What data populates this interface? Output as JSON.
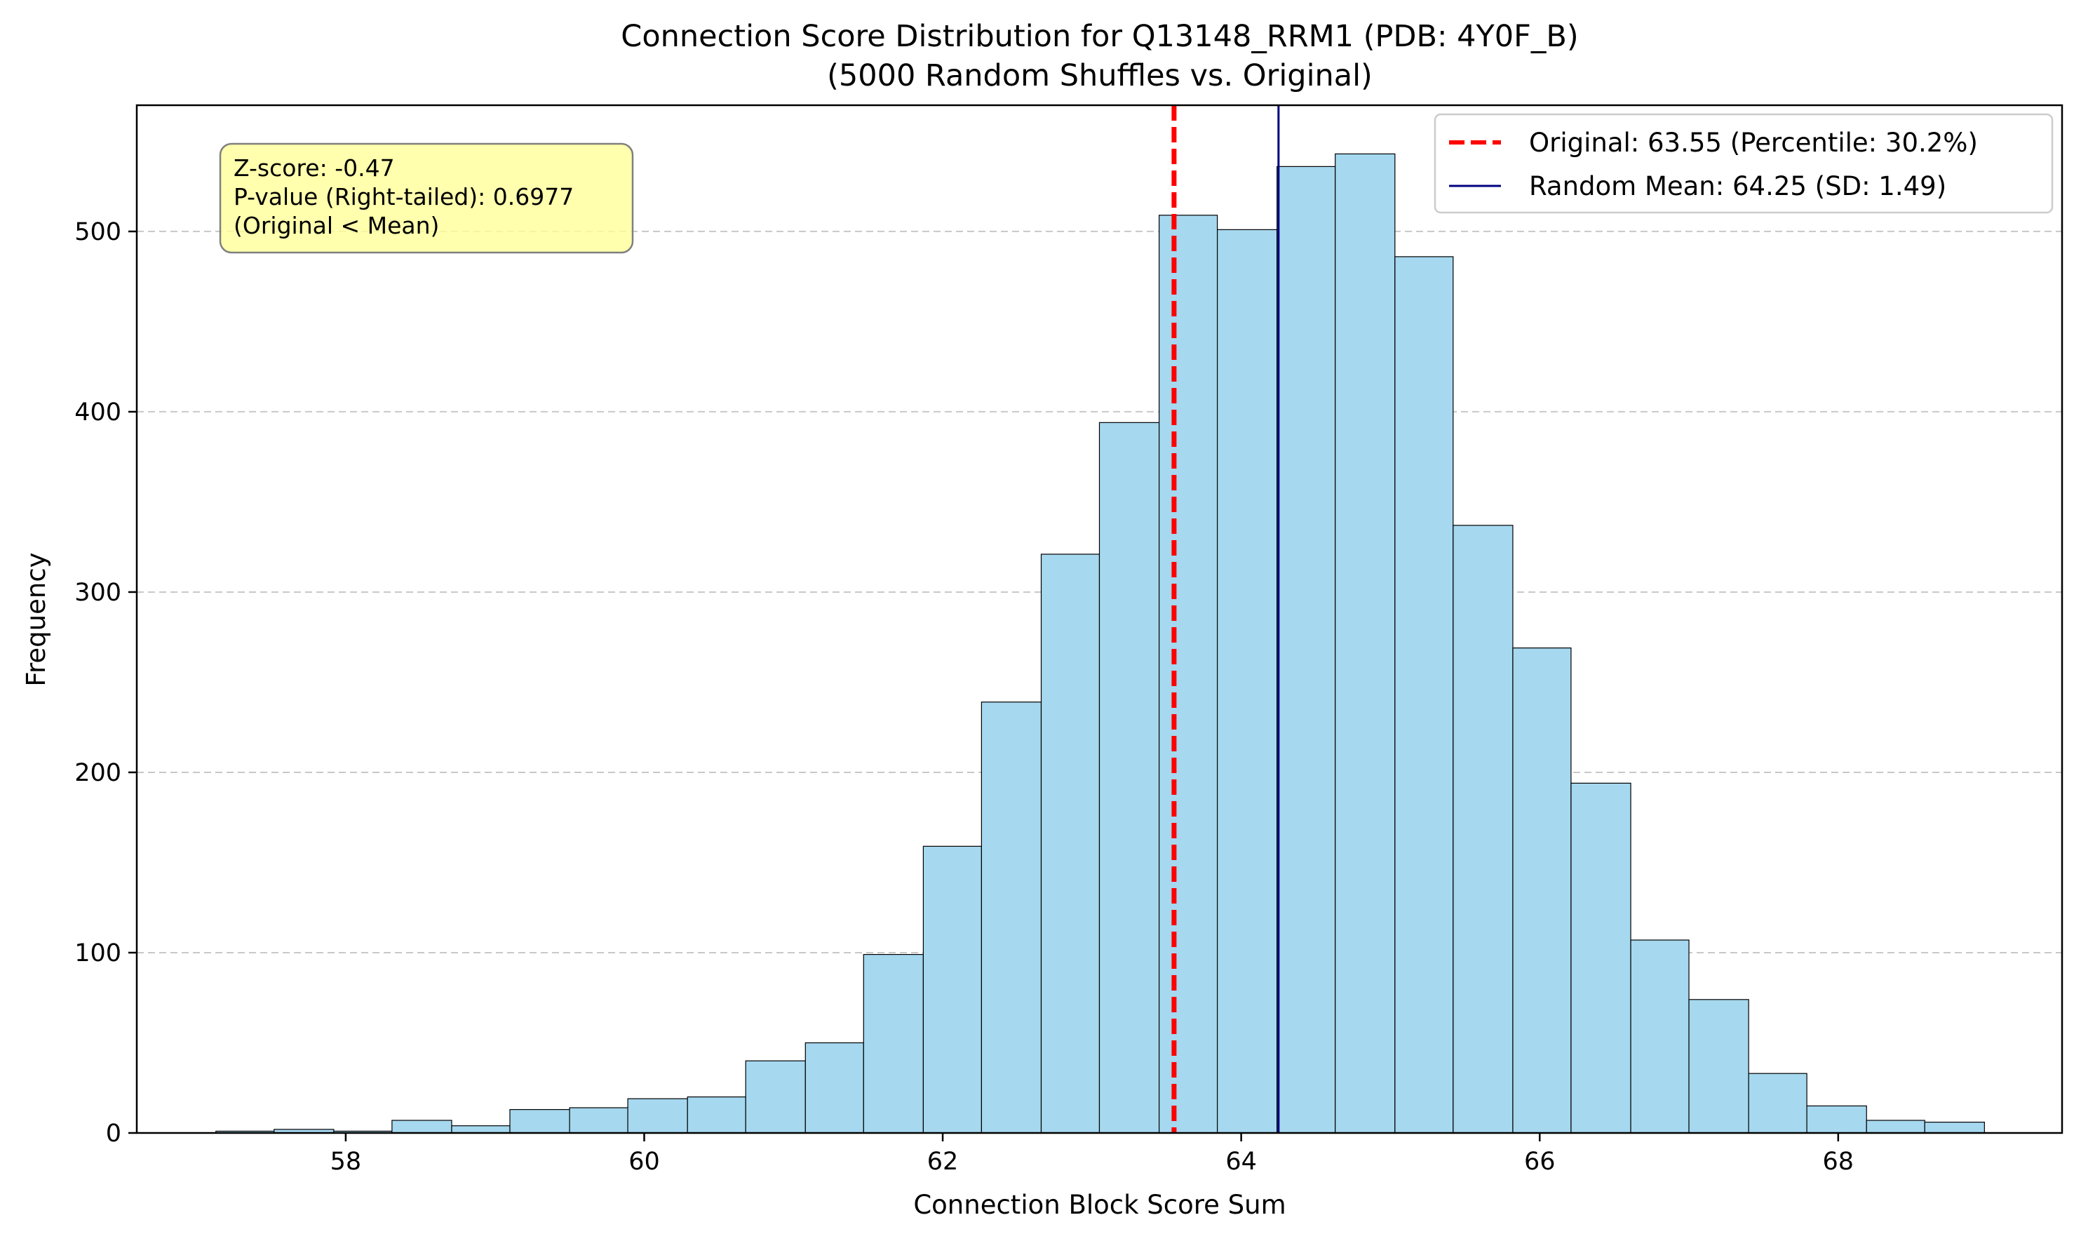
{
  "chart_data": {
    "type": "bar",
    "title": "Connection Score Distribution for Q13148_RRM1 (PDB: 4Y0F_B)",
    "subtitle": "(5000 Random Shuffles vs. Original)",
    "xlabel": "Connection Block Score Sum",
    "ylabel": "Frequency",
    "xlim": [
      56.6,
      69.5
    ],
    "ylim": [
      0,
      570
    ],
    "xticks": [
      58,
      60,
      62,
      64,
      66,
      68
    ],
    "yticks": [
      0,
      100,
      200,
      300,
      400,
      500
    ],
    "grid": "y-dashed",
    "legend_position": "upper right",
    "bin_edges": [
      57.13,
      57.52,
      57.92,
      58.31,
      58.71,
      59.1,
      59.5,
      59.89,
      60.29,
      60.68,
      61.08,
      61.47,
      61.87,
      62.26,
      62.66,
      63.05,
      63.45,
      63.84,
      64.24,
      64.63,
      65.03,
      65.42,
      65.82,
      66.21,
      66.61,
      67.0,
      67.4,
      67.79,
      68.19,
      68.58,
      68.98
    ],
    "counts": [
      1,
      2,
      1,
      7,
      4,
      13,
      14,
      19,
      20,
      40,
      50,
      99,
      159,
      239,
      321,
      394,
      509,
      501,
      536,
      543,
      486,
      337,
      269,
      194,
      107,
      74,
      33,
      15,
      7,
      6
    ],
    "bar_color": "#a6d8ef",
    "bar_edge_color": "#000000",
    "reference_lines": [
      {
        "label": "Original: 63.55 (Percentile: 30.2%)",
        "x": 63.55,
        "color": "#ff0000",
        "style": "dashed"
      },
      {
        "label": "Random Mean: 64.25 (SD: 1.49)",
        "x": 64.25,
        "color": "#000080",
        "style": "solid"
      }
    ],
    "annotation": {
      "lines": [
        "Z-score: -0.47",
        "P-value (Right-tailed): 0.6977",
        "(Original < Mean)"
      ],
      "background": "#ffff99"
    }
  }
}
